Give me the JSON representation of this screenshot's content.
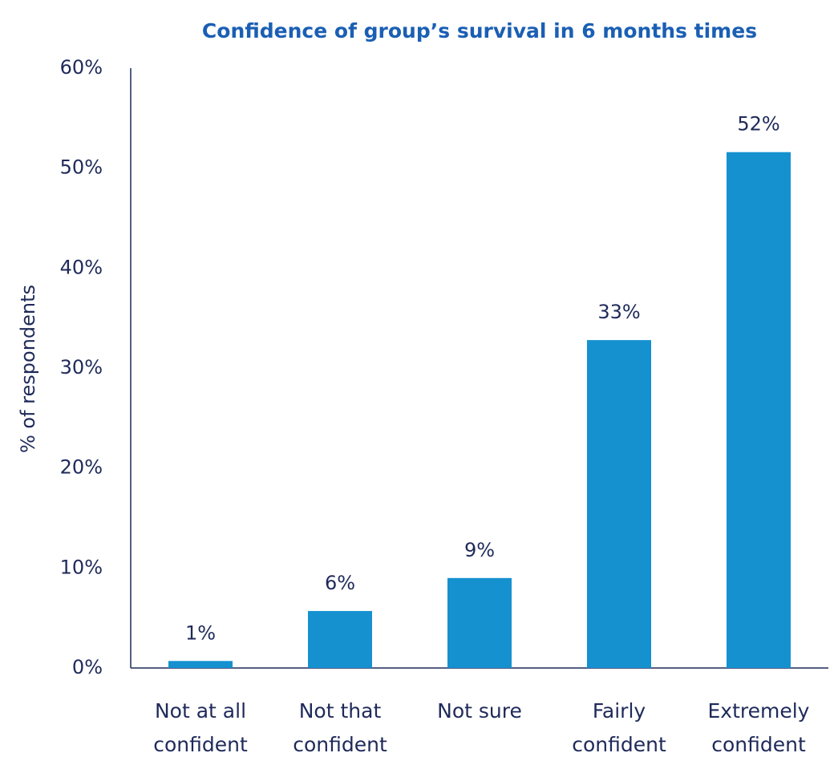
{
  "chart_data": {
    "type": "bar",
    "title": "Confidence of group’s survival in 6 months times",
    "y_axis_label": "% of respondents",
    "categories": [
      "Not at all confident",
      "Not that confident",
      "Not sure",
      "Fairly confident",
      "Extremely confident"
    ],
    "values": [
      0.7,
      5.7,
      9,
      32.8,
      51.6
    ],
    "value_labels": [
      "1%",
      "6%",
      "9%",
      "33%",
      "52%"
    ],
    "color": "#1591d0",
    "ylim": [
      0,
      60
    ],
    "yticks": [
      {
        "value": 0,
        "label": "0%"
      },
      {
        "value": 10,
        "label": "10%"
      },
      {
        "value": 20,
        "label": "20%"
      },
      {
        "value": 30,
        "label": "30%"
      },
      {
        "value": 40,
        "label": "40%"
      },
      {
        "value": 50,
        "label": "50%"
      },
      {
        "value": 60,
        "label": "60%"
      }
    ],
    "grid": false
  }
}
